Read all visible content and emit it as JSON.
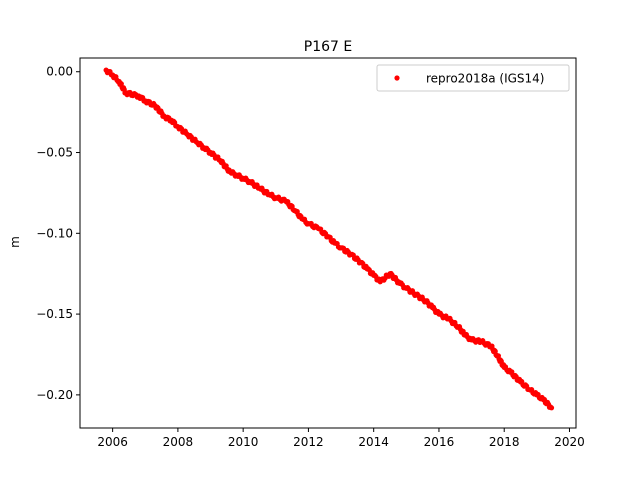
{
  "chart_data": {
    "type": "scatter",
    "title": "P167 E",
    "xlabel": "",
    "ylabel": "m",
    "xlim": [
      2005.0,
      2020.2
    ],
    "ylim": [
      -0.2205,
      0.0085
    ],
    "x_ticks": [
      2006,
      2008,
      2010,
      2012,
      2014,
      2016,
      2018,
      2020
    ],
    "x_tick_labels": [
      "2006",
      "2008",
      "2010",
      "2012",
      "2014",
      "2016",
      "2018",
      "2020"
    ],
    "y_ticks": [
      0.0,
      -0.05,
      -0.1,
      -0.15,
      -0.2
    ],
    "y_tick_labels": [
      "0.00",
      "−0.05",
      "−0.10",
      "−0.15",
      "−0.20"
    ],
    "grid": false,
    "legend_position": "top-right",
    "series": [
      {
        "name": "repro2018a (IGS14)",
        "color": "#ff0000",
        "marker": "dot",
        "x": [
          2005.8,
          2006.0,
          2006.2,
          2006.4,
          2006.8,
          2007.0,
          2007.3,
          2007.6,
          2007.8,
          2008.0,
          2008.3,
          2008.6,
          2008.8,
          2009.0,
          2009.3,
          2009.6,
          2009.8,
          2010.0,
          2010.2,
          2010.5,
          2010.8,
          2011.0,
          2011.3,
          2011.6,
          2011.8,
          2012.0,
          2012.3,
          2012.6,
          2012.8,
          2013.0,
          2013.3,
          2013.6,
          2013.8,
          2014.0,
          2014.2,
          2014.5,
          2014.8,
          2015.0,
          2015.3,
          2015.6,
          2015.8,
          2016.0,
          2016.3,
          2016.6,
          2016.8,
          2017.0,
          2017.3,
          2017.6,
          2017.8,
          2018.0,
          2018.2,
          2018.5,
          2018.8,
          2019.0,
          2019.2,
          2019.45
        ],
        "y": [
          0.001,
          -0.002,
          -0.006,
          -0.013,
          -0.015,
          -0.018,
          -0.021,
          -0.028,
          -0.03,
          -0.034,
          -0.039,
          -0.044,
          -0.047,
          -0.05,
          -0.055,
          -0.062,
          -0.064,
          -0.066,
          -0.068,
          -0.072,
          -0.076,
          -0.078,
          -0.08,
          -0.086,
          -0.091,
          -0.094,
          -0.097,
          -0.102,
          -0.106,
          -0.109,
          -0.113,
          -0.118,
          -0.122,
          -0.126,
          -0.13,
          -0.125,
          -0.131,
          -0.134,
          -0.138,
          -0.142,
          -0.146,
          -0.15,
          -0.153,
          -0.158,
          -0.163,
          -0.166,
          -0.167,
          -0.17,
          -0.176,
          -0.183,
          -0.186,
          -0.192,
          -0.197,
          -0.2,
          -0.203,
          -0.208
        ]
      }
    ]
  }
}
